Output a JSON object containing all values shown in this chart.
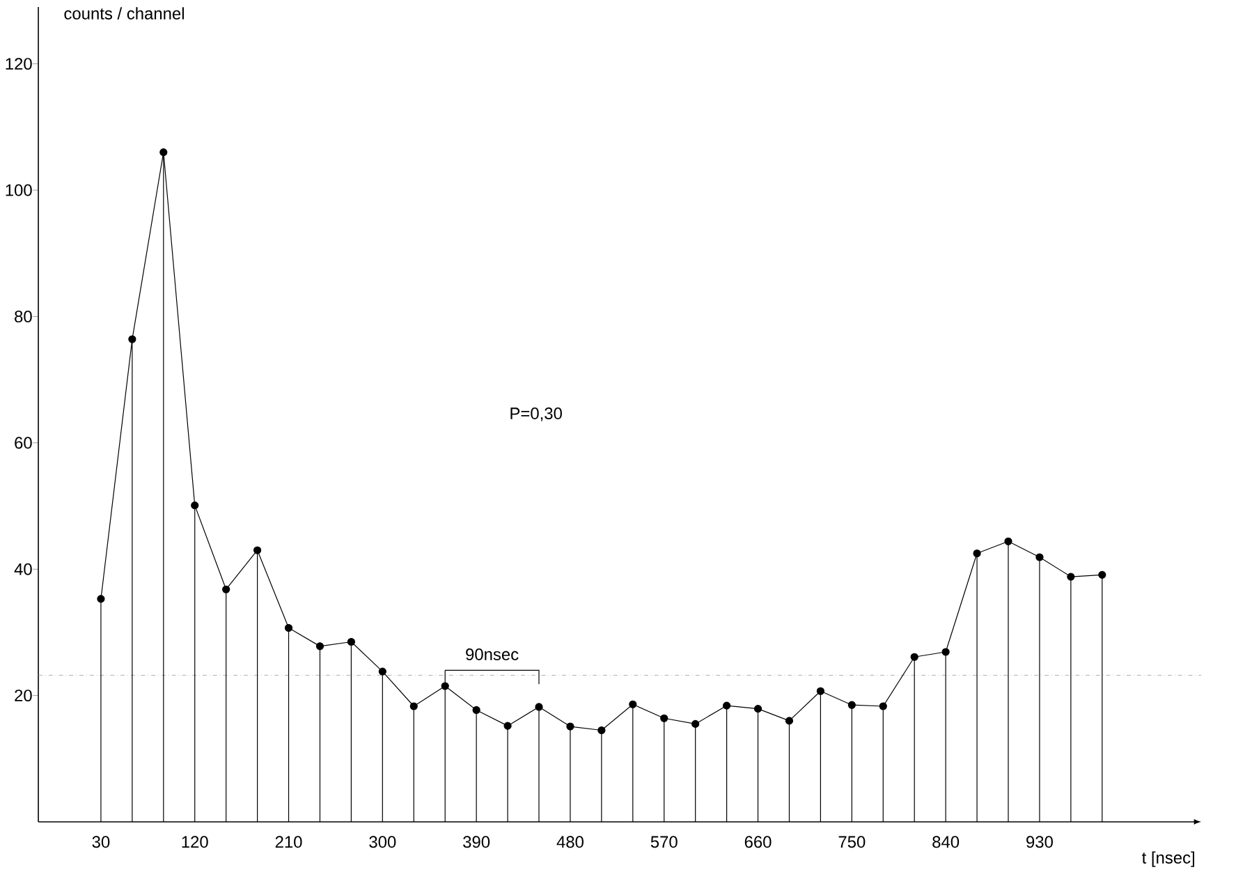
{
  "chart_data": {
    "type": "line",
    "xlabel": "t [nsec]",
    "ylabel": "counts / channel",
    "annotations": [
      "P=0,30",
      {
        "text": "90nsec",
        "x": 405,
        "y": 24
      }
    ],
    "x": [
      30,
      60,
      90,
      120,
      150,
      180,
      210,
      240,
      270,
      300,
      330,
      360,
      390,
      420,
      450,
      480,
      510,
      540,
      570,
      600,
      630,
      660,
      690,
      720,
      750,
      780,
      810,
      840,
      870,
      900,
      930,
      960,
      990
    ],
    "series": [
      {
        "type": "lollipop",
        "color": "#000000",
        "marker": "circle",
        "values": [
          35.3,
          76.4,
          106,
          50.1,
          36.8,
          43,
          30.7,
          27.8,
          28.5,
          23.8,
          18.3,
          21.5,
          17.7,
          15.2,
          18.2,
          15.1,
          14.5,
          18.6,
          16.4,
          15.5,
          18.4,
          17.9,
          16.0,
          20.7,
          18.5,
          18.3,
          26.1,
          26.9,
          42.5,
          44.4,
          41.9,
          38.8,
          39.1
        ]
      },
      {
        "color": "#000000",
        "values": [
          35.3,
          76.4,
          106,
          50.1,
          36.8,
          43,
          30.7,
          27.8,
          28.5,
          23.8,
          18.3,
          21.5,
          17.7,
          15.2,
          18.2,
          15.1,
          14.5,
          18.6,
          16.4,
          15.5,
          18.4,
          17.9,
          16.0,
          20.7,
          18.5,
          18.3,
          26.1,
          26.9,
          42.5,
          44.4,
          41.9,
          38.8,
          39.1
        ]
      }
    ],
    "xlim": [
      -30,
      1085
    ],
    "ylim": [
      0,
      129
    ],
    "xticks": [
      30,
      120,
      210,
      300,
      390,
      480,
      570,
      660,
      750,
      840,
      930
    ],
    "yticks": [
      20,
      40,
      60,
      80,
      100,
      120
    ],
    "ref_lines": [
      {
        "axis": "y",
        "value": 23.2,
        "color": "#9a9a9a",
        "line_style": "dashed"
      }
    ],
    "grid": false
  }
}
